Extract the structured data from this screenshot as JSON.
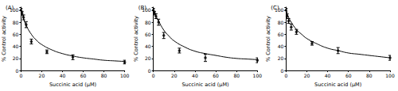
{
  "chart_data": [
    {
      "type": "scatter",
      "title": "(A)",
      "x_label": "Succinic acid (µM)",
      "y_label": "% Control activity",
      "xlim": [
        0,
        100
      ],
      "xticks": [
        0,
        20,
        40,
        60,
        80,
        100
      ],
      "ylim": [
        0,
        105
      ],
      "yticks": [
        0,
        20,
        40,
        60,
        80,
        100
      ],
      "grid": false,
      "series": [
        {
          "type": "scatter",
          "marker": "circle",
          "color": "#000000",
          "x": [
            0,
            1,
            2.5,
            5,
            10,
            25,
            50,
            100
          ],
          "values": [
            100,
            95,
            88,
            76,
            48,
            31,
            22,
            14
          ],
          "errors": [
            3,
            3,
            4,
            5,
            4,
            3,
            4,
            3
          ]
        },
        {
          "type": "line",
          "line_style": "solid",
          "color": "#000000",
          "x": [
            0,
            2,
            5,
            10,
            15,
            20,
            30,
            40,
            50,
            60,
            70,
            80,
            90,
            100
          ],
          "values": [
            100,
            88,
            75,
            60,
            50,
            43,
            34,
            28,
            24,
            21,
            19,
            17,
            16,
            15
          ]
        }
      ]
    },
    {
      "type": "scatter",
      "title": "(B)",
      "x_label": "Succinic acid (µM)",
      "y_label": "% Control activity",
      "xlim": [
        0,
        100
      ],
      "xticks": [
        0,
        20,
        40,
        60,
        80,
        100
      ],
      "ylim": [
        0,
        105
      ],
      "yticks": [
        0,
        20,
        40,
        60,
        80,
        100
      ],
      "grid": false,
      "series": [
        {
          "type": "scatter",
          "marker": "circle",
          "color": "#000000",
          "x": [
            0,
            1,
            2.5,
            5,
            10,
            25,
            50,
            100
          ],
          "values": [
            100,
            95,
            90,
            80,
            58,
            33,
            21,
            17
          ],
          "errors": [
            3,
            3,
            4,
            5,
            5,
            4,
            6,
            4
          ]
        },
        {
          "type": "line",
          "line_style": "solid",
          "color": "#000000",
          "x": [
            0,
            2,
            5,
            10,
            15,
            20,
            30,
            40,
            50,
            60,
            70,
            80,
            90,
            100
          ],
          "values": [
            100,
            92,
            82,
            67,
            57,
            49,
            39,
            32,
            28,
            25,
            22,
            20,
            19,
            18
          ]
        }
      ]
    },
    {
      "type": "scatter",
      "title": "(C)",
      "x_label": "Succinic acid (µM)",
      "y_label": "% Control activity",
      "xlim": [
        0,
        100
      ],
      "xticks": [
        0,
        20,
        40,
        60,
        80,
        100
      ],
      "ylim": [
        0,
        105
      ],
      "yticks": [
        0,
        20,
        40,
        60,
        80,
        100
      ],
      "grid": false,
      "series": [
        {
          "type": "scatter",
          "marker": "circle",
          "color": "#000000",
          "x": [
            0,
            1,
            2.5,
            5,
            10,
            25,
            50,
            100
          ],
          "values": [
            100,
            90,
            82,
            72,
            64,
            45,
            33,
            21
          ],
          "errors": [
            3,
            4,
            4,
            5,
            4,
            3,
            5,
            4
          ]
        },
        {
          "type": "line",
          "line_style": "solid",
          "color": "#000000",
          "x": [
            0,
            2,
            5,
            10,
            15,
            20,
            30,
            40,
            50,
            60,
            70,
            80,
            90,
            100
          ],
          "values": [
            100,
            90,
            80,
            68,
            60,
            53,
            44,
            37,
            33,
            29,
            27,
            25,
            23,
            21
          ]
        }
      ]
    }
  ]
}
